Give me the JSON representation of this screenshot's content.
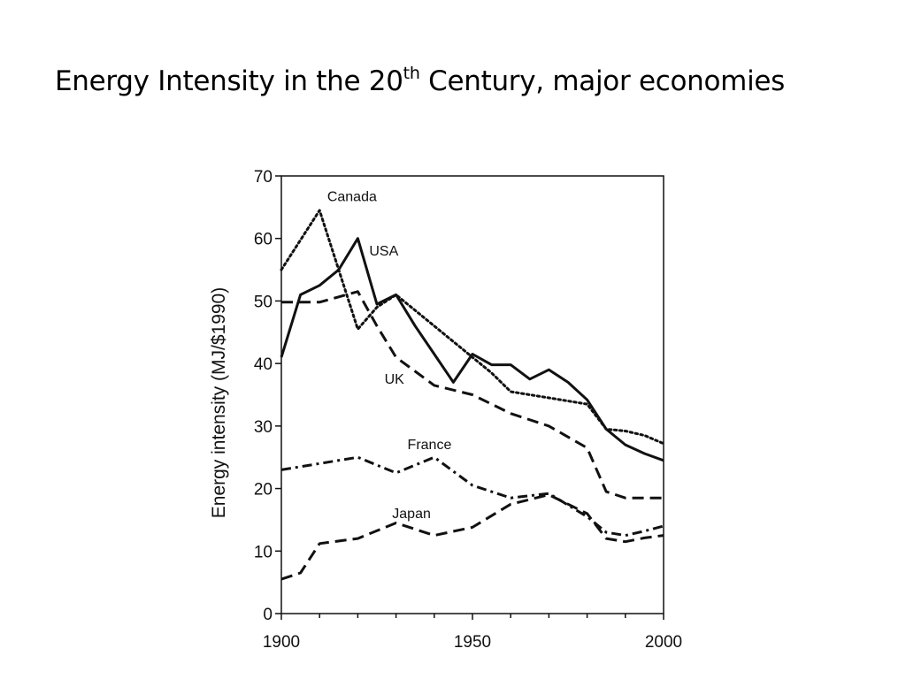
{
  "slide": {
    "title_main": "Energy Intensity in the 20",
    "title_sup": "th",
    "title_rest": " Century, major economies"
  },
  "chart_data": {
    "type": "line",
    "title": "Energy Intensity in the 20th Century, major economies",
    "xlabel": "",
    "ylabel": "Energy intensity (MJ/$1990)",
    "xlim": [
      1900,
      2000
    ],
    "ylim": [
      0,
      70
    ],
    "x_ticks": [
      1900,
      1950,
      2000
    ],
    "y_ticks": [
      0,
      10,
      20,
      30,
      40,
      50,
      60,
      70
    ],
    "grid": false,
    "legend": "inline labels",
    "series": [
      {
        "name": "Canada",
        "style": "dotted",
        "label_pos": [
          1912,
          66
        ],
        "points": [
          [
            1900,
            55
          ],
          [
            1910,
            64.5
          ],
          [
            1920,
            45.5
          ],
          [
            1925,
            49
          ],
          [
            1930,
            51
          ],
          [
            1940,
            46
          ],
          [
            1950,
            41
          ],
          [
            1955,
            38.5
          ],
          [
            1960,
            35.5
          ],
          [
            1970,
            34.5
          ],
          [
            1980,
            33.5
          ],
          [
            1985,
            29.5
          ],
          [
            1990,
            29.2
          ],
          [
            1995,
            28.5
          ],
          [
            2000,
            27.2
          ]
        ]
      },
      {
        "name": "USA",
        "style": "solid",
        "label_pos": [
          1923,
          57.3
        ],
        "points": [
          [
            1900,
            41
          ],
          [
            1905,
            51
          ],
          [
            1910,
            52.5
          ],
          [
            1915,
            55
          ],
          [
            1920,
            60
          ],
          [
            1925,
            49.5
          ],
          [
            1930,
            51
          ],
          [
            1935,
            46
          ],
          [
            1940,
            41.5
          ],
          [
            1945,
            37
          ],
          [
            1950,
            41.5
          ],
          [
            1955,
            39.8
          ],
          [
            1960,
            39.8
          ],
          [
            1965,
            37.5
          ],
          [
            1970,
            39
          ],
          [
            1975,
            37
          ],
          [
            1980,
            34.2
          ],
          [
            1985,
            29.5
          ],
          [
            1990,
            27
          ],
          [
            1995,
            25.6
          ],
          [
            2000,
            24.5
          ]
        ]
      },
      {
        "name": "UK",
        "style": "dashed",
        "label_pos": [
          1927,
          36.8
        ],
        "points": [
          [
            1900,
            49.8
          ],
          [
            1910,
            49.8
          ],
          [
            1920,
            51.5
          ],
          [
            1925,
            46
          ],
          [
            1930,
            41
          ],
          [
            1940,
            36.5
          ],
          [
            1950,
            35
          ],
          [
            1960,
            32
          ],
          [
            1970,
            30
          ],
          [
            1980,
            26.5
          ],
          [
            1985,
            19.5
          ],
          [
            1990,
            18.5
          ],
          [
            1995,
            18.5
          ],
          [
            2000,
            18.5
          ]
        ]
      },
      {
        "name": "France",
        "style": "dash-dot",
        "label_pos": [
          1933,
          26.3
        ],
        "points": [
          [
            1900,
            23
          ],
          [
            1910,
            24
          ],
          [
            1920,
            25
          ],
          [
            1930,
            22.5
          ],
          [
            1940,
            25
          ],
          [
            1950,
            20.5
          ],
          [
            1960,
            18.5
          ],
          [
            1970,
            19.2
          ],
          [
            1980,
            15.5
          ],
          [
            1985,
            13
          ],
          [
            1990,
            12.5
          ],
          [
            1995,
            13.2
          ],
          [
            2000,
            14
          ]
        ]
      },
      {
        "name": "Japan",
        "style": "dashed",
        "label_pos": [
          1929,
          15.3
        ],
        "points": [
          [
            1900,
            5.5
          ],
          [
            1905,
            6.5
          ],
          [
            1910,
            11.2
          ],
          [
            1920,
            12
          ],
          [
            1930,
            14.5
          ],
          [
            1940,
            12.5
          ],
          [
            1950,
            13.8
          ],
          [
            1960,
            17.5
          ],
          [
            1970,
            19
          ],
          [
            1980,
            16
          ],
          [
            1985,
            12
          ],
          [
            1990,
            11.5
          ],
          [
            1995,
            12.1
          ],
          [
            2000,
            12.5
          ]
        ]
      }
    ]
  }
}
